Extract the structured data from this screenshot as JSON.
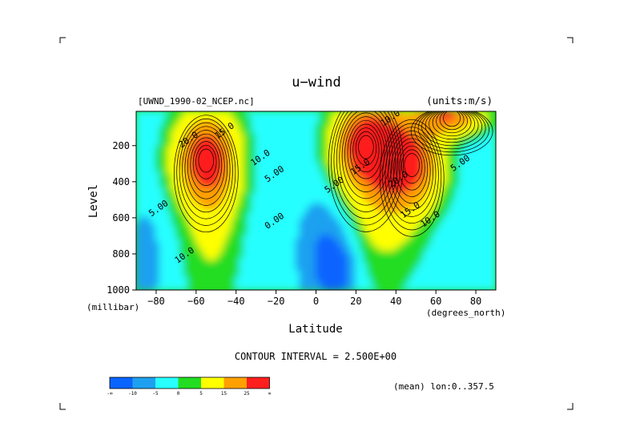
{
  "chart_data": {
    "type": "contour",
    "title": "u−wind",
    "dataset_label": "[UWND_1990-02_NCEP.nc]",
    "units_label": "(units:m/s)",
    "xlabel": "Latitude",
    "x_unit_label": "(degrees_north)",
    "ylabel": "Level",
    "y_unit_label": "(millibar)",
    "xlim": [
      -90,
      90
    ],
    "ylim": [
      1000,
      10
    ],
    "x_ticks": [
      -80,
      -60,
      -40,
      -20,
      0,
      20,
      40,
      60,
      80
    ],
    "x_tick_labels": [
      "−80",
      "−60",
      "−40",
      "−20",
      "0",
      "20",
      "40",
      "60",
      "80"
    ],
    "y_ticks": [
      200,
      400,
      600,
      800,
      1000
    ],
    "y_tick_labels": [
      "200",
      "400",
      "600",
      "800",
      "1000"
    ],
    "contour_interval_text": "CONTOUR INTERVAL = 2.500E+00",
    "mean_text": "(mean) lon:0..357.5",
    "colorbar": {
      "levels": [
        "-∞",
        "-10",
        "-5",
        "0",
        "5",
        "15",
        "25",
        "∞"
      ],
      "colors": [
        "#0a64ff",
        "#1ea0f0",
        "#28ffff",
        "#22dd22",
        "#ffff00",
        "#ffa000",
        "#ff1e1e"
      ]
    },
    "jets": [
      {
        "lat": -55,
        "level": 275,
        "max": 25
      },
      {
        "lat": 25,
        "level": 200,
        "max": 30
      },
      {
        "lat": 48,
        "level": 300,
        "max": 25
      },
      {
        "lat": 68,
        "level": 40,
        "max": 25
      }
    ],
    "contour_labels": [
      {
        "text": "20.0",
        "lat": -63,
        "level": 180
      },
      {
        "text": "15.0",
        "lat": -45,
        "level": 130
      },
      {
        "text": "10.0",
        "lat": -27,
        "level": 280
      },
      {
        "text": "5.00",
        "lat": -20,
        "level": 370
      },
      {
        "text": "5.00",
        "lat": -78,
        "level": 560
      },
      {
        "text": "10.0",
        "lat": -65,
        "level": 820
      },
      {
        "text": "0.00",
        "lat": -20,
        "level": 630
      },
      {
        "text": "10.0",
        "lat": 38,
        "level": 60
      },
      {
        "text": "15.0",
        "lat": 23,
        "level": 330
      },
      {
        "text": "20.0",
        "lat": 42,
        "level": 400
      },
      {
        "text": "5.00",
        "lat": 10,
        "level": 430
      },
      {
        "text": "15.0",
        "lat": 48,
        "level": 570
      },
      {
        "text": "10.0",
        "lat": 58,
        "level": 620
      },
      {
        "text": "5.00",
        "lat": 73,
        "level": 310
      }
    ]
  }
}
